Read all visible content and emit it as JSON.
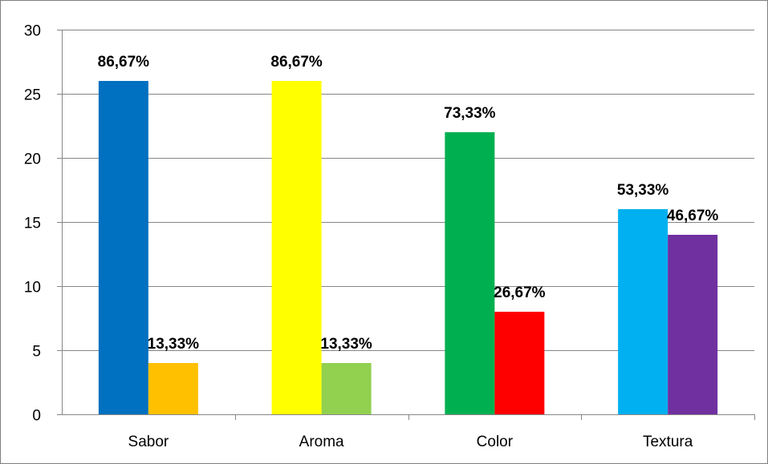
{
  "chart_data": {
    "type": "bar",
    "title": "",
    "xlabel": "",
    "ylabel": "",
    "ylim": [
      0,
      30
    ],
    "yticks": [
      0,
      5,
      10,
      15,
      20,
      25,
      30
    ],
    "grid": true,
    "legend": "none",
    "categories": [
      "Sabor",
      "Aroma",
      "Color",
      "Textura"
    ],
    "groups": [
      {
        "category": "Sabor",
        "bars": [
          {
            "value": 26,
            "label": "86,67%",
            "color": "#0070c0"
          },
          {
            "value": 4,
            "label": "13,33%",
            "color": "#ffc000"
          }
        ]
      },
      {
        "category": "Aroma",
        "bars": [
          {
            "value": 26,
            "label": "86,67%",
            "color": "#ffff00"
          },
          {
            "value": 4,
            "label": "13,33%",
            "color": "#92d050"
          }
        ]
      },
      {
        "category": "Color",
        "bars": [
          {
            "value": 22,
            "label": "73,33%",
            "color": "#00b050"
          },
          {
            "value": 8,
            "label": "26,67%",
            "color": "#ff0000"
          }
        ]
      },
      {
        "category": "Textura",
        "bars": [
          {
            "value": 16,
            "label": "53,33%",
            "color": "#00b0f0"
          },
          {
            "value": 14,
            "label": "46,67%",
            "color": "#7030a0"
          }
        ]
      }
    ]
  }
}
